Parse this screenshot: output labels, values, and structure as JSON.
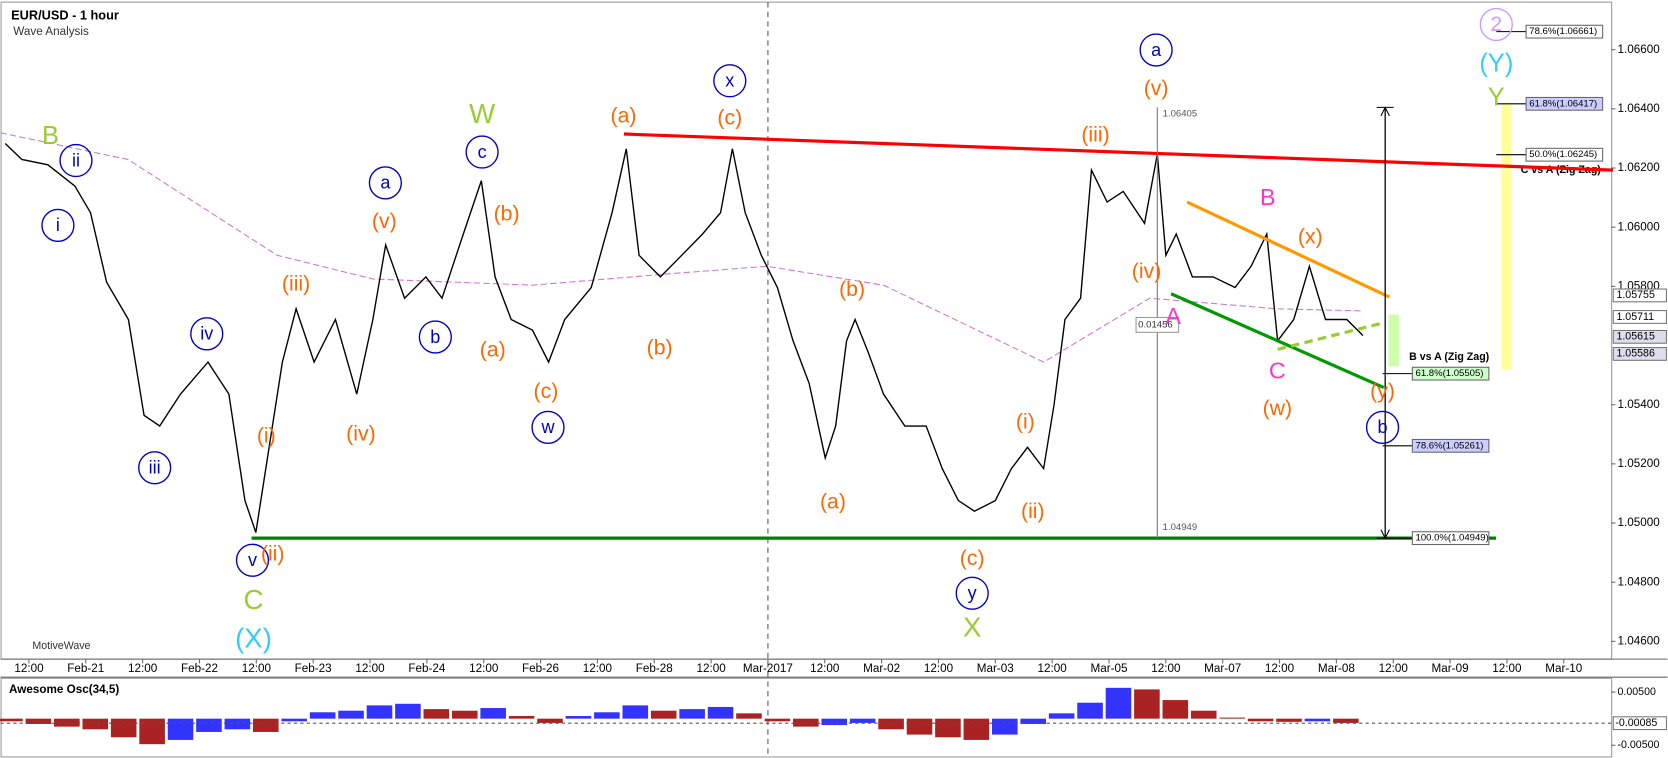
{
  "chart_data": {
    "type": "line",
    "title": "EUR/USD - 1 hour",
    "subtitle": "Wave Analysis",
    "watermark": "MotiveWave",
    "color": "#000000",
    "xlim": [
      -6,
      334
    ],
    "ylim": [
      1.0454,
      1.0675
    ],
    "xticks": [
      {
        "value": 0,
        "label": "12:00"
      },
      {
        "value": 12,
        "label": "Feb-21"
      },
      {
        "value": 24,
        "label": "12:00"
      },
      {
        "value": 36,
        "label": "Feb-22"
      },
      {
        "value": 48,
        "label": "12:00"
      },
      {
        "value": 60,
        "label": "Feb-23"
      },
      {
        "value": 72,
        "label": "12:00"
      },
      {
        "value": 84,
        "label": "Feb-24"
      },
      {
        "value": 96,
        "label": "12:00"
      },
      {
        "value": 108,
        "label": "Feb-26"
      },
      {
        "value": 120,
        "label": "12:00"
      },
      {
        "value": 132,
        "label": "Feb-28"
      },
      {
        "value": 144,
        "label": "12:00"
      },
      {
        "value": 156,
        "label": "Mar-2017"
      },
      {
        "value": 168,
        "label": "12:00"
      },
      {
        "value": 180,
        "label": "Mar-02"
      },
      {
        "value": 192,
        "label": "12:00"
      },
      {
        "value": 204,
        "label": "Mar-03"
      },
      {
        "value": 216,
        "label": "12:00"
      },
      {
        "value": 228,
        "label": "Mar-05"
      },
      {
        "value": 240,
        "label": "12:00"
      },
      {
        "value": 252,
        "label": "Mar-07"
      },
      {
        "value": 264,
        "label": "12:00"
      },
      {
        "value": 276,
        "label": "Mar-08"
      },
      {
        "value": 288,
        "label": "12:00"
      },
      {
        "value": 300,
        "label": "Mar-09"
      },
      {
        "value": 312,
        "label": "12:00"
      },
      {
        "value": 324,
        "label": "Mar-10"
      }
    ],
    "yticks": [
      {
        "value": 1.046,
        "label": "1.04600"
      },
      {
        "value": 1.048,
        "label": "1.04800"
      },
      {
        "value": 1.05,
        "label": "1.05000"
      },
      {
        "value": 1.052,
        "label": "1.05200"
      },
      {
        "value": 1.054,
        "label": "1.05400"
      },
      {
        "value": 1.058,
        "label": "1.05800"
      },
      {
        "value": 1.06,
        "label": "1.06000"
      },
      {
        "value": 1.062,
        "label": "1.06200"
      },
      {
        "value": 1.064,
        "label": "1.06400"
      },
      {
        "value": 1.066,
        "label": "1.06600"
      }
    ],
    "x": [
      -5,
      -1.5,
      4,
      9.7,
      13,
      16.4,
      21,
      24.3,
      27.6,
      32,
      37.8,
      42.2,
      45.6,
      47.9,
      50,
      53.5,
      56.4,
      60.2,
      64.7,
      69.2,
      72.6,
      75.3,
      79.3,
      83.8,
      87.2,
      91.7,
      95.5,
      98.4,
      101.8,
      106.3,
      109.7,
      113.1,
      118.7,
      123.1,
      126.1,
      128.8,
      133.3,
      137.8,
      142.2,
      146,
      148.5,
      151.2,
      154.6,
      158,
      161.3,
      164.7,
      168.1,
      170.3,
      172.6,
      174.4,
      177.1,
      180.4,
      184.9,
      189.4,
      192.8,
      196.2,
      199.6,
      204,
      207.4,
      210.8,
      214.2,
      216.4,
      218.7,
      222,
      224.3,
      227.6,
      231,
      235.5,
      238.2,
      240,
      242.2,
      245.6,
      250,
      254.6,
      258,
      261.3,
      263.6,
      267,
      270.3,
      273.7,
      278.2,
      281.6
    ],
    "values": [
      1.06283,
      1.06229,
      1.06211,
      1.06139,
      1.06049,
      1.05814,
      1.05688,
      1.05364,
      1.05328,
      1.05436,
      1.05544,
      1.05436,
      1.05076,
      1.04968,
      1.05184,
      1.05544,
      1.05724,
      1.05544,
      1.05688,
      1.05436,
      1.05688,
      1.0594,
      1.0576,
      1.05832,
      1.0576,
      1.05977,
      1.06157,
      1.05832,
      1.05688,
      1.05652,
      1.05544,
      1.05688,
      1.05796,
      1.06049,
      1.06265,
      1.05905,
      1.05832,
      1.05905,
      1.05977,
      1.06049,
      1.06265,
      1.06049,
      1.05905,
      1.05796,
      1.05616,
      1.05472,
      1.0522,
      1.05328,
      1.05616,
      1.05688,
      1.0558,
      1.05436,
      1.05328,
      1.05328,
      1.05184,
      1.05076,
      1.0504,
      1.05076,
      1.05184,
      1.05256,
      1.05184,
      1.054,
      1.05688,
      1.0576,
      1.06193,
      1.06085,
      1.06121,
      1.06013,
      1.06247,
      1.05905,
      1.05977,
      1.05832,
      1.05832,
      1.05796,
      1.05868,
      1.05977,
      1.05616,
      1.05688,
      1.05868,
      1.05688,
      1.05688,
      1.05634
    ],
    "moving_average": {
      "color": "#cc77cc",
      "x": [
        -6,
        20.9,
        52.4,
        72.6,
        106.3,
        133.3,
        155.7,
        180.4,
        214.2,
        236.6,
        263.6,
        281.6
      ],
      "values": [
        1.06319,
        1.06229,
        1.05905,
        1.05825,
        1.05804,
        1.0584,
        1.05868,
        1.05804,
        1.05544,
        1.0576,
        1.05724,
        1.05717
      ]
    },
    "trend_lines": [
      {
        "color": "#ff0000",
        "x": [
          125.6,
          334.4
        ],
        "values": [
          1.06315,
          1.06193
        ]
      },
      {
        "color": "#008000",
        "x": [
          47,
          309.7
        ],
        "values": [
          1.04949,
          1.04949
        ]
      },
      {
        "color": "#ff9900",
        "x": [
          244.5,
          287.2
        ],
        "values": [
          1.06085,
          1.05764
        ]
      },
      {
        "color": "#009900",
        "x": [
          241.1,
          286
        ],
        "values": [
          1.05775,
          1.05458
        ]
      },
      {
        "color": "#99cc33",
        "dashed": true,
        "x": [
          263.6,
          286
        ],
        "values": [
          1.05587,
          1.05677
        ]
      }
    ],
    "highlight_bars": [
      {
        "color": "#ffff99",
        "x": [
          310.8,
          313
        ],
        "values": [
          1.06417,
          1.0552
        ]
      },
      {
        "color": "#ccffaa",
        "x": [
          287,
          289.2
        ],
        "values": [
          1.05705,
          1.0553
        ]
      }
    ],
    "measure": {
      "x": 238.2,
      "arrow_x": 286.3,
      "high": 1.06405,
      "low": 1.04949,
      "range": 0.01456
    },
    "fib_levels": [
      {
        "value": 1.06661,
        "label": "78.6%(1.06661)",
        "color": "#ffffff"
      },
      {
        "value": 1.06417,
        "label": "61.8%(1.06417)",
        "color": "#ccccff"
      },
      {
        "value": 1.06245,
        "label": "50.0%(1.06245)",
        "color": "#ffffff"
      },
      {
        "value": 1.05505,
        "label": "61.8%(1.05505)",
        "color": "#ccffcc"
      },
      {
        "value": 1.05261,
        "label": "78.6%(1.05261)",
        "color": "#ccccff"
      },
      {
        "value": 1.04949,
        "label": "100.0%(1.04949)",
        "color": "#ffffff"
      }
    ],
    "fib_titles": [
      "C vs A (Zig Zag)",
      "B vs A (Zig Zag)"
    ],
    "price_tags": [
      1.05755,
      1.05711,
      1.05615,
      1.05586
    ],
    "annotations": [
      {
        "text": "B",
        "color": "#99cc33"
      },
      {
        "text": "ii",
        "color": "#0000cc",
        "circled": true
      },
      {
        "text": "i",
        "color": "#0000cc",
        "circled": true
      },
      {
        "text": "iii",
        "color": "#0000cc",
        "circled": true
      },
      {
        "text": "iv",
        "color": "#0000cc",
        "circled": true
      },
      {
        "text": "v",
        "color": "#0000cc",
        "circled": true
      },
      {
        "text": "(ii)",
        "color": "#ff6600"
      },
      {
        "text": "C",
        "color": "#99cc33"
      },
      {
        "text": "(X)",
        "color": "#33ccff"
      },
      {
        "text": "(i)",
        "color": "#ff6600"
      },
      {
        "text": "(iii)",
        "color": "#ff6600"
      },
      {
        "text": "(iv)",
        "color": "#ff6600"
      },
      {
        "text": "a",
        "color": "#0000cc",
        "circled": true
      },
      {
        "text": "(v)",
        "color": "#ff6600"
      },
      {
        "text": "b",
        "color": "#0000cc",
        "circled": true
      },
      {
        "text": "W",
        "color": "#99cc33"
      },
      {
        "text": "c",
        "color": "#0000cc",
        "circled": true
      },
      {
        "text": "(b)",
        "color": "#ff6600"
      },
      {
        "text": "(a)",
        "color": "#ff6600"
      },
      {
        "text": "(c)",
        "color": "#ff6600"
      },
      {
        "text": "w",
        "color": "#0000cc",
        "circled": true
      },
      {
        "text": "(a)",
        "color": "#ff6600"
      },
      {
        "text": "(b)",
        "color": "#ff6600"
      },
      {
        "text": "x",
        "color": "#0000cc",
        "circled": true
      },
      {
        "text": "(c)",
        "color": "#ff6600"
      },
      {
        "text": "(b)",
        "color": "#ff6600"
      },
      {
        "text": "(a)",
        "color": "#ff6600"
      },
      {
        "text": "(i)",
        "color": "#ff6600"
      },
      {
        "text": "(ii)",
        "color": "#ff6600"
      },
      {
        "text": "(c)",
        "color": "#ff6600"
      },
      {
        "text": "y",
        "color": "#0000cc",
        "circled": true
      },
      {
        "text": "X",
        "color": "#99cc33"
      },
      {
        "text": "a",
        "color": "#0000cc",
        "circled": true
      },
      {
        "text": "(v)",
        "color": "#ff6600"
      },
      {
        "text": "(iii)",
        "color": "#ff6600"
      },
      {
        "text": "(iv)",
        "color": "#ff6600"
      },
      {
        "text": "A",
        "color": "#ff33cc"
      },
      {
        "text": "B",
        "color": "#ff33cc"
      },
      {
        "text": "(x)",
        "color": "#ff6600"
      },
      {
        "text": "C",
        "color": "#ff33cc"
      },
      {
        "text": "(w)",
        "color": "#ff6600"
      },
      {
        "text": "(y)",
        "color": "#ff6600"
      },
      {
        "text": "b",
        "color": "#0000cc",
        "circled": true
      },
      {
        "text": "2",
        "color": "#cc99ff",
        "circled": true
      },
      {
        "text": "(Y)",
        "color": "#33ccff"
      },
      {
        "text": "Y",
        "color": "#99cc33"
      }
    ],
    "oscillator": {
      "title": "Awesome Osc(34,5)",
      "up_color": "#3333ff",
      "down_color": "#aa2222",
      "ylim": [
        -0.0072,
        0.0072
      ],
      "yticks": [
        {
          "value": 0.005,
          "label": "0.00500"
        },
        {
          "value": -0.005,
          "label": "-0.00500"
        }
      ],
      "current": {
        "value": -0.00085,
        "label": "-0.00085"
      },
      "x": [
        -4,
        2,
        8,
        14,
        20,
        26,
        32,
        38,
        44,
        50,
        56,
        62,
        68,
        74,
        80,
        86,
        92,
        98,
        104,
        110,
        116,
        122,
        128,
        134,
        140,
        146,
        152,
        158,
        164,
        170,
        176,
        182,
        188,
        194,
        200,
        206,
        212,
        218,
        224,
        230,
        236,
        242,
        248,
        254,
        260,
        266,
        272,
        278
      ],
      "values": [
        -0.0005,
        -0.001,
        -0.0015,
        -0.002,
        -0.0035,
        -0.0048,
        -0.004,
        -0.0025,
        -0.002,
        -0.0025,
        -0.0005,
        0.0012,
        0.0015,
        0.0025,
        0.0028,
        0.0018,
        0.0015,
        0.002,
        0.0005,
        -0.0008,
        0.0005,
        0.0012,
        0.0025,
        0.0015,
        0.0018,
        0.0022,
        0.001,
        -0.0005,
        -0.0015,
        -0.0012,
        -0.0008,
        -0.002,
        -0.003,
        -0.0035,
        -0.004,
        -0.003,
        -0.001,
        0.001,
        0.003,
        0.0058,
        0.0055,
        0.0035,
        0.0015,
        0.0002,
        -0.0005,
        -0.0006,
        -0.0005,
        -0.0008
      ]
    }
  }
}
